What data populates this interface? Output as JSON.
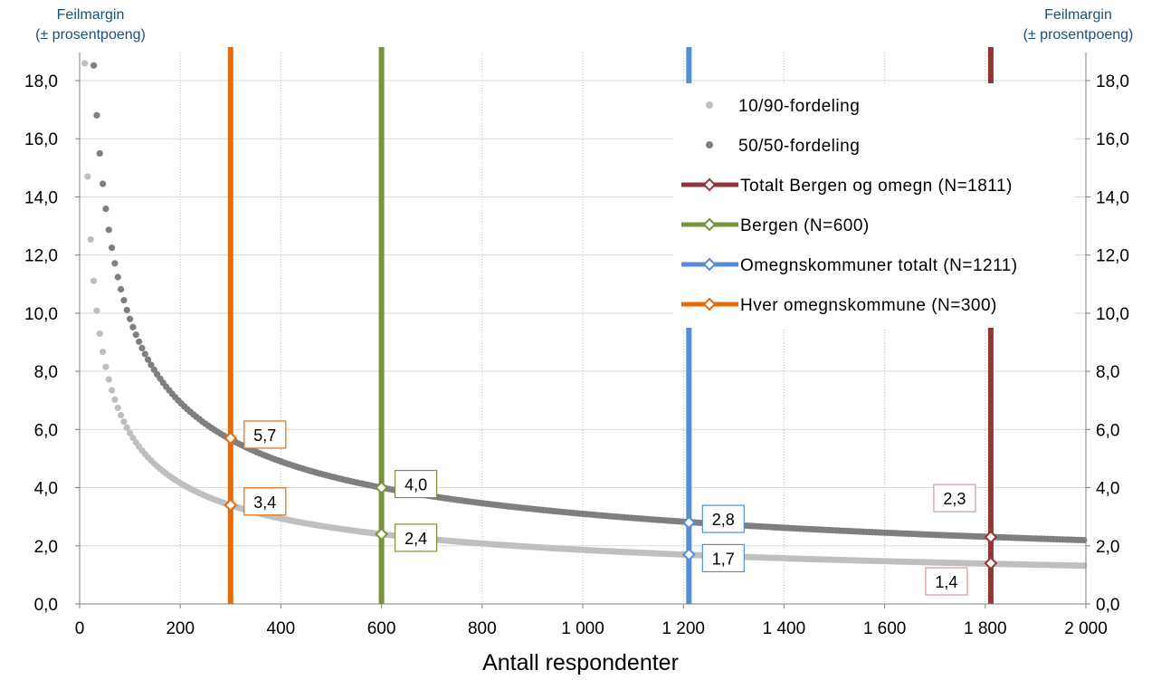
{
  "chart_data": {
    "type": "scatter",
    "ylabel_left": "Feilmargin (± prosentpoeng)",
    "ylabel_right": "Feilmargin (± prosentpoeng)",
    "ylabel_line1": "Feilmargin",
    "ylabel_line2": "(± prosentpoeng)",
    "xlabel": "Antall respondenter",
    "xlim": [
      0,
      2000
    ],
    "ylim": [
      0,
      19
    ],
    "x_ticks": [
      0,
      200,
      400,
      600,
      800,
      1000,
      1200,
      1400,
      1600,
      1800,
      2000
    ],
    "x_tick_labels": [
      "0",
      "200",
      "400",
      "600",
      "800",
      "1 000",
      "1 200",
      "1 400",
      "1 600",
      "1 800",
      "2 000"
    ],
    "y_ticks": [
      0,
      2,
      4,
      6,
      8,
      10,
      12,
      14,
      16,
      18
    ],
    "y_tick_labels": [
      "0,0",
      "2,0",
      "4,0",
      "6,0",
      "8,0",
      "10,0",
      "12,0",
      "14,0",
      "16,0",
      "18,0"
    ],
    "grid": true,
    "legend_position": "top-right",
    "scatter_series": [
      {
        "name": "10/90-fordeling",
        "color": "#bfbfbf",
        "p": 0.1,
        "formula": "196*sqrt(p*(1-p)/n)"
      },
      {
        "name": "50/50-fordeling",
        "color": "#7f7f7f",
        "p": 0.5,
        "formula": "196*sqrt(p*(1-p)/n)"
      }
    ],
    "vertical_lines": [
      {
        "name": "Totalt Bergen og omegn (N=1811)",
        "x": 1811,
        "color": "#943634",
        "labels": [
          {
            "value": "2,3",
            "y": 2.3,
            "box_pos": "above-left"
          },
          {
            "value": "1,4",
            "y": 1.4,
            "box_pos": "below-left"
          }
        ]
      },
      {
        "name": "Bergen (N=600)",
        "x": 600,
        "color": "#77933c",
        "labels": [
          {
            "value": "4,0",
            "y": 4.0,
            "box_pos": "right"
          },
          {
            "value": "2,4",
            "y": 2.4,
            "box_pos": "right"
          }
        ]
      },
      {
        "name": "Omegnskommuner totalt (N=1211)",
        "x": 1211,
        "color": "#558ed5",
        "labels": [
          {
            "value": "2,8",
            "y": 2.8,
            "box_pos": "right"
          },
          {
            "value": "1,7",
            "y": 1.7,
            "box_pos": "right"
          }
        ]
      },
      {
        "name": "Hver omegnskommune (N=300)",
        "x": 300,
        "color": "#e46c0a",
        "labels": [
          {
            "value": "5,7",
            "y": 5.7,
            "box_pos": "right"
          },
          {
            "value": "3,4",
            "y": 3.4,
            "box_pos": "right"
          }
        ]
      }
    ]
  }
}
